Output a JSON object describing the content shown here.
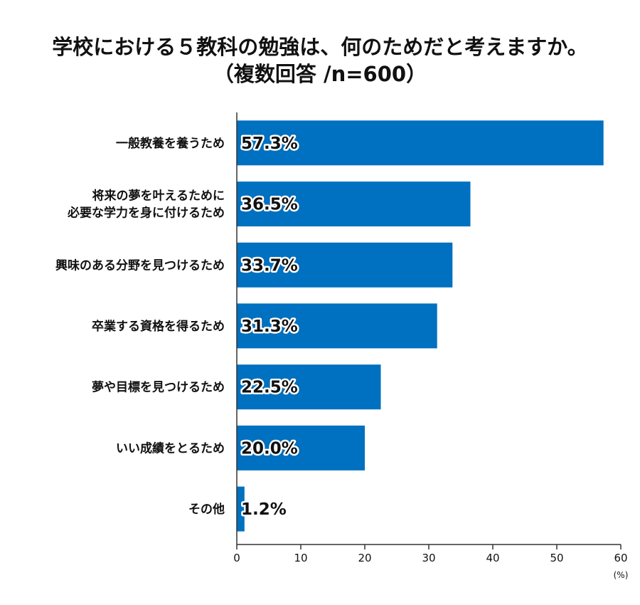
{
  "title_line1": "学校における５教科の勉強は、何のためだと考えますか。",
  "title_line2": "（複数回答 /n=600）",
  "colors": {
    "bar": "#0070c0",
    "axis": "#333333"
  },
  "chart_data": {
    "type": "bar",
    "orientation": "horizontal",
    "categories": [
      [
        "一般教養を養うため"
      ],
      [
        "将来の夢を叶えるために",
        "必要な学力を身に付けるため"
      ],
      [
        "興味のある分野を見つけるため"
      ],
      [
        "卒業する資格を得るため"
      ],
      [
        "夢や目標を見つけるため"
      ],
      [
        "いい成績をとるため"
      ],
      [
        "その他"
      ]
    ],
    "values": [
      57.3,
      36.5,
      33.7,
      31.3,
      22.5,
      20.0,
      1.2
    ],
    "value_labels": [
      "57.3%",
      "36.5%",
      "33.7%",
      "31.3%",
      "22.5%",
      "20.0%",
      "1.2%"
    ],
    "xlim": [
      0,
      60
    ],
    "xticks": [
      0,
      10,
      20,
      30,
      40,
      50,
      60
    ],
    "xunit": "(%)",
    "grid": false,
    "legend": "none"
  }
}
